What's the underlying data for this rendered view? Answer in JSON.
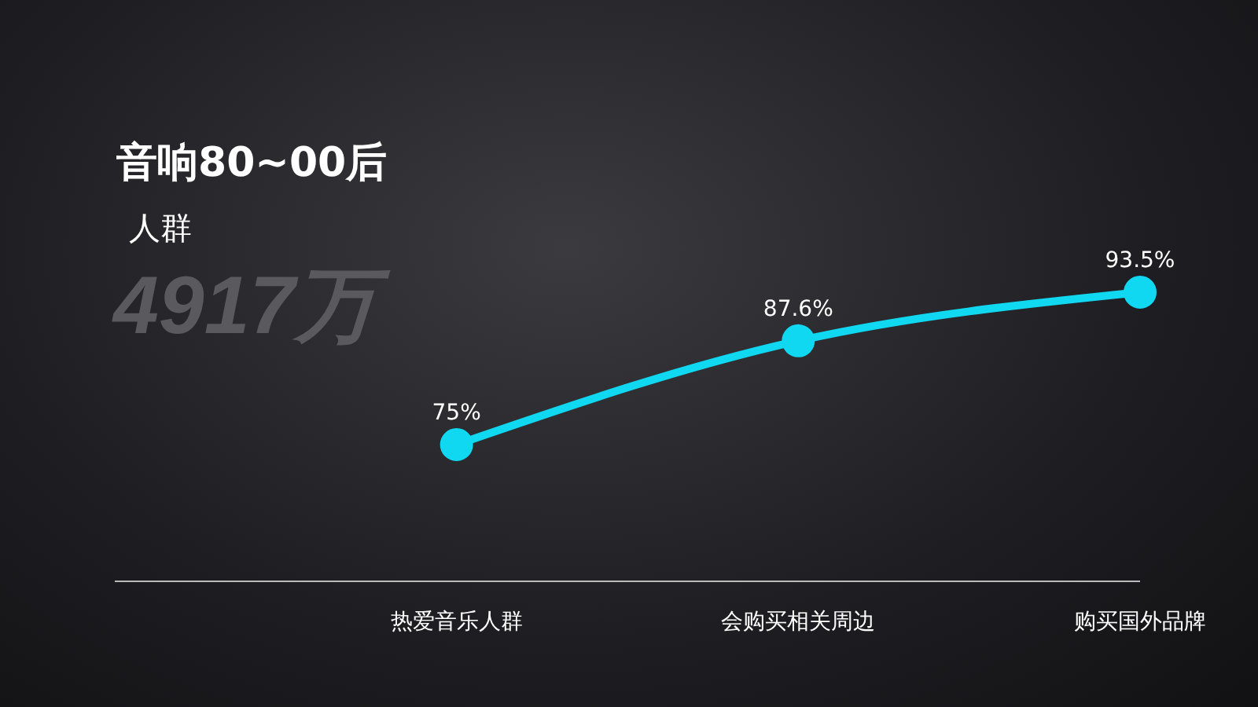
{
  "chart_data": {
    "type": "line",
    "title": "音响80~00后",
    "subtitle": "人群",
    "annotations": [
      "4917万"
    ],
    "categories": [
      null,
      "热爱音乐人群",
      "会购买相关周边",
      "购买国外品牌"
    ],
    "values": [
      null,
      75,
      87.6,
      93.5
    ],
    "value_labels": [
      null,
      "75%",
      "87.6%",
      "93.5%"
    ],
    "color": "#10d8f0",
    "marker": "circle",
    "tick_labels": "x"
  }
}
